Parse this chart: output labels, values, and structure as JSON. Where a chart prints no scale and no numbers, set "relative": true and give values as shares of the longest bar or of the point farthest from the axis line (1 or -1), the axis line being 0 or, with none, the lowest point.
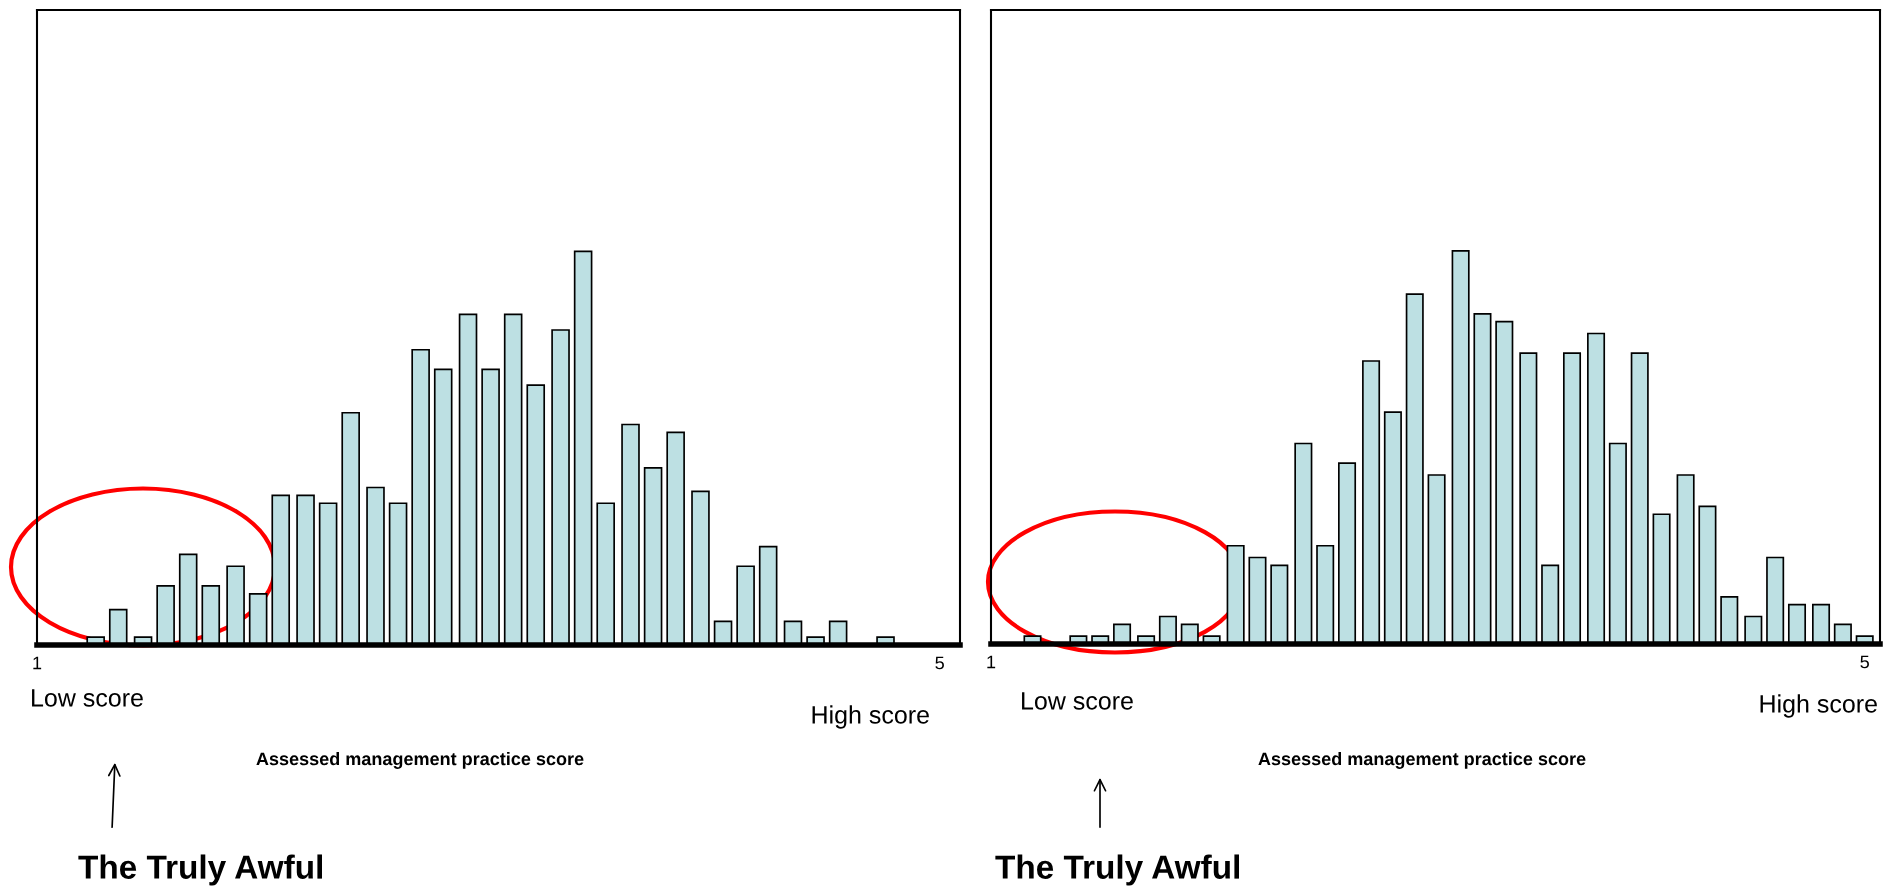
{
  "chart_data": [
    {
      "type": "bar",
      "relative": true,
      "xlabel": "Assessed management practice score",
      "xlim": [
        1,
        5.09
      ],
      "xticks": [
        1,
        5
      ],
      "grid": false,
      "color": "#bde0e3",
      "x": [
        1.26,
        1.36,
        1.47,
        1.57,
        1.67,
        1.77,
        1.88,
        1.98,
        2.08,
        2.19,
        2.29,
        2.39,
        2.5,
        2.6,
        2.7,
        2.8,
        2.91,
        3.01,
        3.11,
        3.21,
        3.32,
        3.42,
        3.52,
        3.63,
        3.73,
        3.83,
        3.94,
        4.04,
        4.14,
        4.24,
        4.35,
        4.45,
        4.55,
        4.66,
        4.76
      ],
      "values": [
        0.02,
        0.09,
        0.02,
        0.15,
        0.23,
        0.15,
        0.2,
        0.13,
        0.38,
        0.38,
        0.36,
        0.59,
        0.4,
        0.36,
        0.75,
        0.7,
        0.84,
        0.7,
        0.84,
        0.66,
        0.8,
        1.0,
        0.36,
        0.56,
        0.45,
        0.54,
        0.39,
        0.06,
        0.2,
        0.25,
        0.06,
        0.02,
        0.06,
        0,
        0.02
      ],
      "annotations": [
        "Low score",
        "High score",
        "The Truly Awful"
      ]
    },
    {
      "type": "bar",
      "relative": true,
      "xlabel": "Assessed management practice score",
      "xlim": [
        1,
        5.07
      ],
      "xticks": [
        1,
        5
      ],
      "grid": false,
      "color": "#bde0e3",
      "x": [
        1.19,
        1.29,
        1.4,
        1.5,
        1.6,
        1.71,
        1.81,
        1.91,
        2.01,
        2.12,
        2.22,
        2.32,
        2.43,
        2.53,
        2.63,
        2.74,
        2.84,
        2.94,
        3.04,
        3.15,
        3.25,
        3.35,
        3.46,
        3.56,
        3.66,
        3.77,
        3.87,
        3.97,
        4.07,
        4.18,
        4.28,
        4.38,
        4.49,
        4.59,
        4.69,
        4.8,
        4.9,
        5.0
      ],
      "values": [
        0.02,
        0,
        0.02,
        0.02,
        0.05,
        0.02,
        0.07,
        0.05,
        0.02,
        0.25,
        0.22,
        0.2,
        0.51,
        0.25,
        0.46,
        0.72,
        0.59,
        0.89,
        0.43,
        1.0,
        0.84,
        0.82,
        0.74,
        0.2,
        0.74,
        0.79,
        0.51,
        0.74,
        0.33,
        0.43,
        0.35,
        0.12,
        0.07,
        0.22,
        0.1,
        0.1,
        0.05,
        0.02
      ],
      "annotations": [
        "Low score",
        "High score",
        "The Truly Awful"
      ]
    }
  ]
}
